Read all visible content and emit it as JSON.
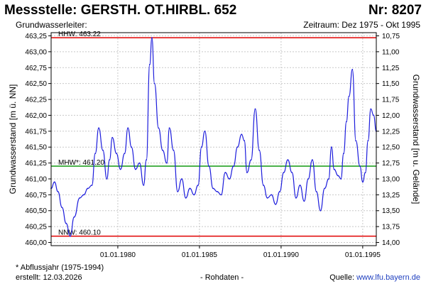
{
  "header": {
    "title": "Messstelle: GERSTH. OT.HIRBL. 652",
    "nr": "Nr: 8207",
    "grundwasserleiter": "Grundwasserleiter:",
    "zeitraum": "Zeitraum: Dez 1975 - Okt 1995"
  },
  "footer": {
    "footnote": "* Abflussjahr (1975-1994)",
    "erstellt": "erstellt:  12.03.2026",
    "rohdaten": "- Rohdaten -",
    "source_prefix": "Quelle: ",
    "source_link": "www.lfu.bayern.de"
  },
  "colors": {
    "series": "#1c1cdc",
    "hhw_nnw": "#e00000",
    "mhw": "#119911",
    "grid": "#c8c8c8"
  },
  "chart_data": {
    "type": "line",
    "xlabel": "",
    "ylabel": "Grundwasserstand [m ü. NN]",
    "y2label": "Grundwasserstand [m u. Gelände]",
    "x_range": [
      "1975-12-01",
      "1995-11-01"
    ],
    "ylim": [
      459.95,
      463.3
    ],
    "y2lim": [
      14.05,
      10.7
    ],
    "x_ticks": [
      {
        "date": "1980-01-01",
        "label": "01.01.1980"
      },
      {
        "date": "1985-01-01",
        "label": "01.01.1985"
      },
      {
        "date": "1990-01-01",
        "label": "01.01.1990"
      },
      {
        "date": "1995-01-01",
        "label": "01.01.1995"
      }
    ],
    "y_ticks": [
      {
        "value": 460.0,
        "label": "460,00"
      },
      {
        "value": 460.25,
        "label": "460,25"
      },
      {
        "value": 460.5,
        "label": "460,50"
      },
      {
        "value": 460.75,
        "label": "460,75"
      },
      {
        "value": 461.0,
        "label": "461,00"
      },
      {
        "value": 461.25,
        "label": "461,25"
      },
      {
        "value": 461.5,
        "label": "461,50"
      },
      {
        "value": 461.75,
        "label": "461,75"
      },
      {
        "value": 462.0,
        "label": "462,00"
      },
      {
        "value": 462.25,
        "label": "462,25"
      },
      {
        "value": 462.5,
        "label": "462,50"
      },
      {
        "value": 462.75,
        "label": "462,75"
      },
      {
        "value": 463.0,
        "label": "463,00"
      },
      {
        "value": 463.25,
        "label": "463,25"
      }
    ],
    "y2_ticks": [
      {
        "value": 14.0,
        "label": "14,00"
      },
      {
        "value": 13.75,
        "label": "13,75"
      },
      {
        "value": 13.5,
        "label": "13,50"
      },
      {
        "value": 13.25,
        "label": "13,25"
      },
      {
        "value": 13.0,
        "label": "13,00"
      },
      {
        "value": 12.75,
        "label": "12,75"
      },
      {
        "value": 12.5,
        "label": "12,50"
      },
      {
        "value": 12.25,
        "label": "12,25"
      },
      {
        "value": 12.0,
        "label": "12,00"
      },
      {
        "value": 11.75,
        "label": "11,75"
      },
      {
        "value": 11.5,
        "label": "11,50"
      },
      {
        "value": 11.25,
        "label": "11,25"
      },
      {
        "value": 11.0,
        "label": "11,00"
      },
      {
        "value": 10.75,
        "label": "10,75"
      }
    ],
    "reference_lines": [
      {
        "label": "HHW: 463.22",
        "value": 463.22,
        "color": "#e00000"
      },
      {
        "label": "MHW*: 461.20",
        "value": 461.2,
        "color": "#119911"
      },
      {
        "label": "NNW: 460.10",
        "value": 460.1,
        "color": "#e00000"
      }
    ],
    "grid": true,
    "legend": "none",
    "series": [
      {
        "color": "#1c1cdc",
        "points": [
          [
            "1975-12-01",
            460.85
          ],
          [
            "1976-02-15",
            460.95
          ],
          [
            "1976-05-01",
            460.8
          ],
          [
            "1976-08-01",
            460.55
          ],
          [
            "1976-11-01",
            460.3
          ],
          [
            "1977-02-01",
            460.1
          ],
          [
            "1977-05-01",
            460.4
          ],
          [
            "1977-09-01",
            460.7
          ],
          [
            "1977-12-01",
            460.75
          ],
          [
            "1978-03-01",
            460.85
          ],
          [
            "1978-06-01",
            460.9
          ],
          [
            "1978-08-15",
            461.4
          ],
          [
            "1978-11-01",
            461.8
          ],
          [
            "1979-02-01",
            461.45
          ],
          [
            "1979-05-01",
            461.0
          ],
          [
            "1979-07-01",
            461.3
          ],
          [
            "1979-09-01",
            461.65
          ],
          [
            "1979-12-01",
            461.4
          ],
          [
            "1980-03-01",
            461.15
          ],
          [
            "1980-06-01",
            461.4
          ],
          [
            "1980-08-15",
            461.8
          ],
          [
            "1980-11-01",
            461.5
          ],
          [
            "1981-02-01",
            461.15
          ],
          [
            "1981-05-01",
            461.25
          ],
          [
            "1981-08-01",
            460.9
          ],
          [
            "1981-10-01",
            461.3
          ],
          [
            "1981-12-15",
            462.8
          ],
          [
            "1982-02-01",
            463.22
          ],
          [
            "1982-04-01",
            462.5
          ],
          [
            "1982-07-01",
            461.8
          ],
          [
            "1982-10-01",
            461.45
          ],
          [
            "1983-01-01",
            461.25
          ],
          [
            "1983-03-01",
            461.8
          ],
          [
            "1983-06-01",
            461.45
          ],
          [
            "1983-09-01",
            460.8
          ],
          [
            "1983-12-01",
            461.0
          ],
          [
            "1984-03-01",
            460.7
          ],
          [
            "1984-06-01",
            460.85
          ],
          [
            "1984-09-01",
            460.75
          ],
          [
            "1984-12-01",
            460.9
          ],
          [
            "1985-02-15",
            461.5
          ],
          [
            "1985-05-01",
            461.75
          ],
          [
            "1985-08-01",
            461.2
          ],
          [
            "1985-11-01",
            460.85
          ],
          [
            "1986-02-01",
            460.8
          ],
          [
            "1986-05-01",
            460.75
          ],
          [
            "1986-08-01",
            461.1
          ],
          [
            "1986-11-01",
            461.0
          ],
          [
            "1987-02-01",
            461.2
          ],
          [
            "1987-05-01",
            461.5
          ],
          [
            "1987-08-01",
            461.7
          ],
          [
            "1987-10-01",
            461.6
          ],
          [
            "1987-12-01",
            461.1
          ],
          [
            "1988-03-01",
            461.3
          ],
          [
            "1988-06-01",
            462.1
          ],
          [
            "1988-09-01",
            461.45
          ],
          [
            "1988-12-01",
            460.9
          ],
          [
            "1989-03-01",
            460.7
          ],
          [
            "1989-06-01",
            460.75
          ],
          [
            "1989-09-01",
            460.6
          ],
          [
            "1989-12-01",
            460.8
          ],
          [
            "1990-03-01",
            461.1
          ],
          [
            "1990-06-01",
            461.3
          ],
          [
            "1990-09-01",
            461.1
          ],
          [
            "1990-12-01",
            460.7
          ],
          [
            "1991-03-01",
            460.9
          ],
          [
            "1991-06-01",
            460.65
          ],
          [
            "1991-09-01",
            461.0
          ],
          [
            "1991-12-01",
            461.3
          ],
          [
            "1992-03-01",
            460.8
          ],
          [
            "1992-06-01",
            460.5
          ],
          [
            "1992-09-01",
            460.85
          ],
          [
            "1992-12-01",
            461.0
          ],
          [
            "1993-02-01",
            461.5
          ],
          [
            "1993-04-01",
            461.15
          ],
          [
            "1993-07-01",
            461.05
          ],
          [
            "1993-09-01",
            461.0
          ],
          [
            "1993-11-01",
            461.4
          ],
          [
            "1994-01-01",
            461.9
          ],
          [
            "1994-03-01",
            462.3
          ],
          [
            "1994-05-15",
            462.72
          ],
          [
            "1994-08-01",
            461.6
          ],
          [
            "1994-11-01",
            461.2
          ],
          [
            "1995-01-01",
            460.95
          ],
          [
            "1995-03-01",
            461.1
          ],
          [
            "1995-05-01",
            461.6
          ],
          [
            "1995-07-01",
            462.1
          ],
          [
            "1995-09-01",
            462.0
          ],
          [
            "1995-11-01",
            461.75
          ]
        ]
      }
    ]
  }
}
